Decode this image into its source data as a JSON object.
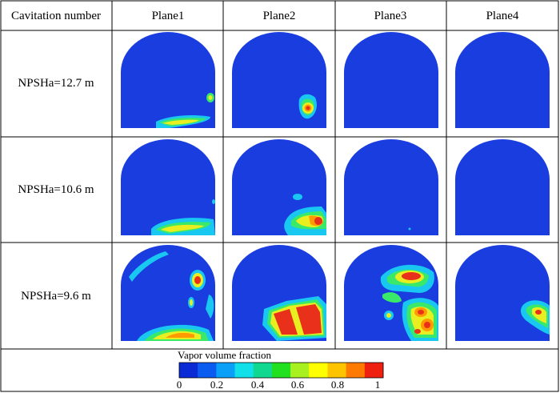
{
  "table": {
    "corner_header": "Cavitation number",
    "column_headers": [
      "Plane1",
      "Plane2",
      "Plane3",
      "Plane4"
    ],
    "row_labels": [
      "NPSHa=12.7 m",
      "NPSHa=10.6 m",
      "NPSHa=9.6 m"
    ]
  },
  "colorbar": {
    "title": "Vapor volume fraction",
    "ticks": [
      "0",
      "0.2",
      "0.4",
      "0.6",
      "0.8",
      "1"
    ],
    "colors": [
      "#0a2ad6",
      "#0a5cf0",
      "#0aa0f8",
      "#12e0e8",
      "#10d890",
      "#20e020",
      "#a8f020",
      "#ffff00",
      "#ffc400",
      "#ff7a00",
      "#f02010"
    ]
  },
  "contour_colors": {
    "background": "#1a3de0",
    "low": "#19c8f0",
    "mid": "#3ae86a",
    "high_mid": "#e8ee20",
    "high": "#ff9a00",
    "max": "#e8301a"
  }
}
